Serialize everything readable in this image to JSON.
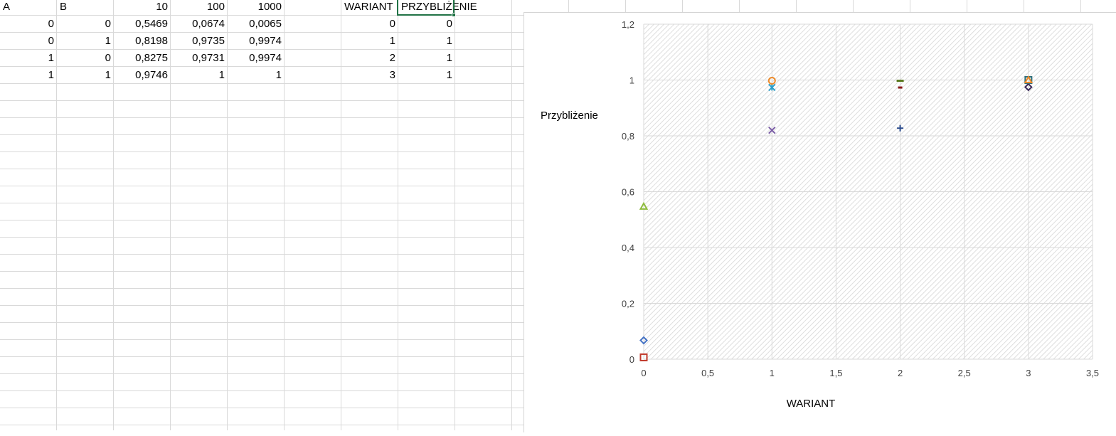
{
  "sheet": {
    "header_row": [
      "A",
      "B",
      "10",
      "100",
      "1000",
      "",
      "WARIANT",
      "PRZYBLIŻENIE"
    ],
    "rows": [
      [
        "0",
        "0",
        "0,5469",
        "0,0674",
        "0,0065",
        "",
        "0",
        "0"
      ],
      [
        "0",
        "1",
        "0,8198",
        "0,9735",
        "0,9974",
        "",
        "1",
        "1"
      ],
      [
        "1",
        "0",
        "0,8275",
        "0,9731",
        "0,9974",
        "",
        "2",
        "1"
      ],
      [
        "1",
        "1",
        "0,9746",
        "1",
        "1",
        "",
        "3",
        "1"
      ]
    ],
    "active_cell": "PRZYBLIŻENIE header"
  },
  "colors": {
    "gridline": "#d9d9d9",
    "active_cell_border": "#217346",
    "plot_hatch": "#d6d6d6",
    "chart_gridline": "#d9d9d9"
  },
  "chart_data": {
    "type": "scatter",
    "xlabel": "WARIANT",
    "ylabel": "Przybliżenie",
    "xlim": [
      0,
      3.5
    ],
    "ylim": [
      0,
      1.2
    ],
    "x_ticks": [
      0,
      0.5,
      1,
      1.5,
      2,
      2.5,
      3,
      3.5
    ],
    "x_tick_labels": [
      "0",
      "0,5",
      "1",
      "1,5",
      "2",
      "2,5",
      "3",
      "3,5"
    ],
    "y_ticks": [
      0,
      0.2,
      0.4,
      0.6,
      0.8,
      1,
      1.2
    ],
    "y_tick_labels": [
      "0",
      "0,2",
      "0,4",
      "0,6",
      "0,8",
      "1",
      "1,2"
    ],
    "grid": true,
    "plot_background": "diagonal-hatch",
    "points": [
      {
        "x": 0,
        "y": 0.0674,
        "marker": "diamond",
        "color": "#4472c4"
      },
      {
        "x": 0,
        "y": 0.0065,
        "marker": "square",
        "color": "#c0392b"
      },
      {
        "x": 0,
        "y": 0.5469,
        "marker": "triangle",
        "color": "#8fbc3f"
      },
      {
        "x": 1,
        "y": 0.8198,
        "marker": "x",
        "color": "#7b5ea7"
      },
      {
        "x": 1,
        "y": 0.9735,
        "marker": "asterisk",
        "color": "#2e9fc9"
      },
      {
        "x": 1,
        "y": 0.9974,
        "marker": "circle",
        "color": "#ed8b2b"
      },
      {
        "x": 2,
        "y": 0.8275,
        "marker": "plus",
        "color": "#2f4f8f"
      },
      {
        "x": 2,
        "y": 0.9974,
        "marker": "dash",
        "color": "#5a7a1f"
      },
      {
        "x": 2,
        "y": 0.9731,
        "marker": "short-dash",
        "color": "#8b1a1a"
      },
      {
        "x": 3,
        "y": 0.9746,
        "marker": "diamond",
        "color": "#3b2a5a"
      },
      {
        "x": 3,
        "y": 1,
        "marker": "square",
        "color": "#2e6f7a"
      },
      {
        "x": 3,
        "y": 1,
        "marker": "triangle",
        "color": "#ed8b2b"
      }
    ]
  }
}
